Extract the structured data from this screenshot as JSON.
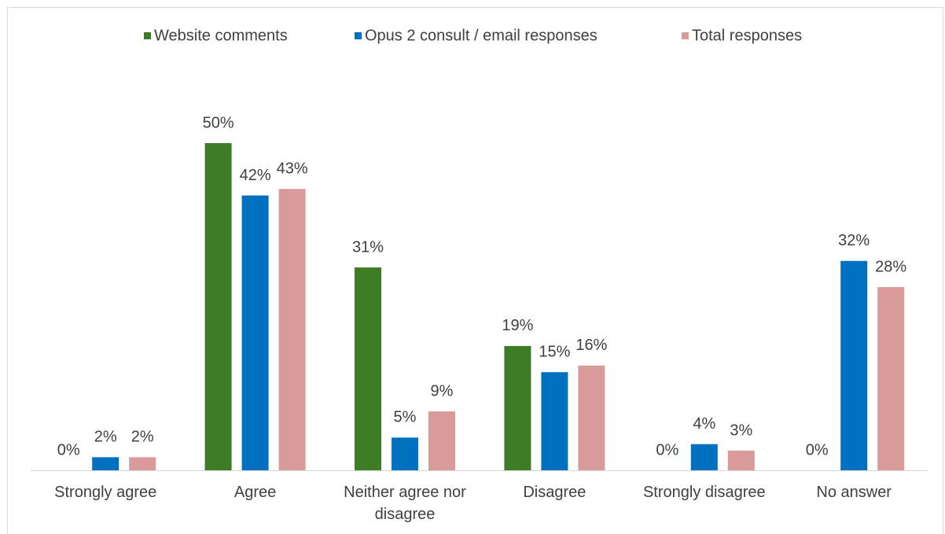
{
  "chart_data": {
    "type": "bar",
    "categories": [
      "Strongly agree",
      "Agree",
      "Neither agree nor disagree",
      "Disagree",
      "Strongly disagree",
      "No answer"
    ],
    "series": [
      {
        "name": "Website comments",
        "color": "#3e7d26",
        "values": [
          0,
          50,
          31,
          19,
          0,
          0
        ],
        "value_labels": [
          "0%",
          "50%",
          "31%",
          "19%",
          "0%",
          "0%"
        ]
      },
      {
        "name": "Opus 2 consult / email responses",
        "color": "#0070c0",
        "values": [
          2,
          42,
          5,
          15,
          4,
          32
        ],
        "value_labels": [
          "2%",
          "42%",
          "5%",
          "15%",
          "4%",
          "32%"
        ]
      },
      {
        "name": "Total responses",
        "color": "#d99a9a",
        "values": [
          2,
          43,
          9,
          16,
          3,
          28
        ],
        "value_labels": [
          "2%",
          "43%",
          "9%",
          "16%",
          "3%",
          "28%"
        ]
      }
    ],
    "legend": "top"
  }
}
